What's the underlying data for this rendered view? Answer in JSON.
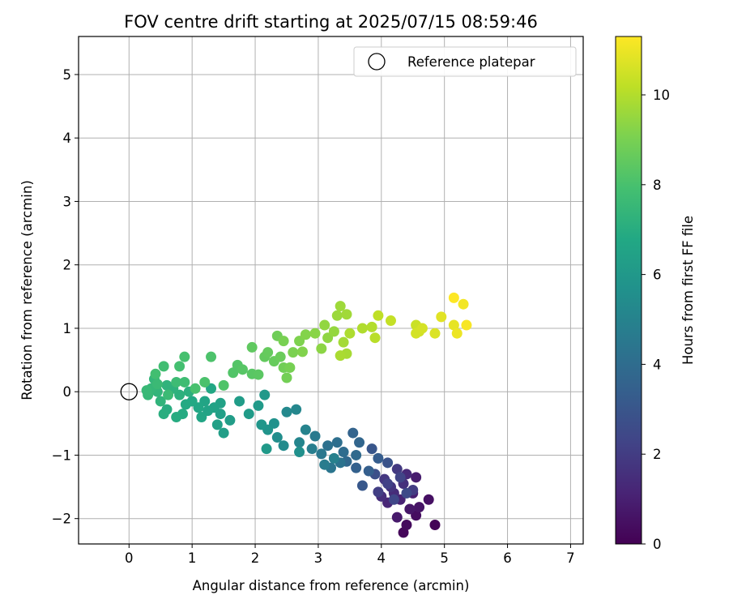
{
  "chart_data": {
    "type": "scatter",
    "title": "FOV centre drift starting at 2025/07/15 08:59:46",
    "xlabel": "Angular distance from reference (arcmin)",
    "ylabel": "Rotation from reference (arcmin)",
    "xlim": [
      -0.8,
      7.2
    ],
    "ylim": [
      -2.4,
      5.6
    ],
    "xticks": [
      "0",
      "1",
      "2",
      "3",
      "4",
      "5",
      "6",
      "7"
    ],
    "yticks": [
      "−2",
      "−1",
      "0",
      "1",
      "2",
      "3",
      "4",
      "5"
    ],
    "grid": true,
    "legend": {
      "position": "top-right",
      "entries": [
        "Reference platepar"
      ]
    },
    "reference_point": {
      "x": 0.0,
      "y": 0.0
    },
    "colorbar": {
      "label": "Hours from first FF file",
      "range": [
        0,
        11.3
      ],
      "ticks": [
        "0",
        "2",
        "4",
        "6",
        "8",
        "10"
      ],
      "colormap": "viridis"
    },
    "points": [
      [
        4.85,
        -2.1,
        0.1
      ],
      [
        4.35,
        -2.22,
        0.2
      ],
      [
        4.4,
        -2.1,
        0.3
      ],
      [
        4.55,
        -1.95,
        0.4
      ],
      [
        4.75,
        -1.7,
        0.5
      ],
      [
        4.6,
        -1.82,
        0.6
      ],
      [
        4.45,
        -1.85,
        0.7
      ],
      [
        4.25,
        -1.98,
        0.8
      ],
      [
        4.55,
        -1.35,
        0.9
      ],
      [
        4.5,
        -1.6,
        1.0
      ],
      [
        4.3,
        -1.7,
        1.1
      ],
      [
        4.1,
        -1.75,
        1.2
      ],
      [
        4.4,
        -1.3,
        1.3
      ],
      [
        4.2,
        -1.6,
        1.4
      ],
      [
        4.0,
        -1.65,
        1.5
      ],
      [
        4.35,
        -1.45,
        1.6
      ],
      [
        4.15,
        -1.5,
        1.7
      ],
      [
        4.05,
        -1.38,
        1.8
      ],
      [
        4.25,
        -1.22,
        1.9
      ],
      [
        4.5,
        -1.55,
        2.0
      ],
      [
        3.95,
        -1.58,
        2.1
      ],
      [
        4.1,
        -1.45,
        2.2
      ],
      [
        4.3,
        -1.35,
        2.3
      ],
      [
        4.2,
        -1.7,
        2.4
      ],
      [
        4.4,
        -1.6,
        2.5
      ],
      [
        3.9,
        -1.3,
        2.7
      ],
      [
        4.1,
        -1.12,
        2.9
      ],
      [
        3.85,
        -0.9,
        3.0
      ],
      [
        3.7,
        -1.48,
        3.1
      ],
      [
        3.95,
        -1.05,
        3.3
      ],
      [
        3.8,
        -1.25,
        3.4
      ],
      [
        3.6,
        -1.2,
        3.5
      ],
      [
        3.55,
        -0.65,
        3.6
      ],
      [
        3.65,
        -0.8,
        3.7
      ],
      [
        3.45,
        -1.1,
        3.8
      ],
      [
        3.6,
        -1.0,
        3.9
      ],
      [
        3.4,
        -0.95,
        4.0
      ],
      [
        3.3,
        -0.8,
        4.1
      ],
      [
        3.15,
        -0.85,
        4.2
      ],
      [
        3.35,
        -1.12,
        4.3
      ],
      [
        3.2,
        -1.2,
        4.4
      ],
      [
        3.05,
        -0.98,
        4.5
      ],
      [
        2.95,
        -0.7,
        4.6
      ],
      [
        3.1,
        -1.15,
        4.7
      ],
      [
        2.9,
        -0.9,
        4.8
      ],
      [
        3.25,
        -1.05,
        4.9
      ],
      [
        2.8,
        -0.6,
        5.0
      ],
      [
        2.7,
        -0.8,
        5.1
      ],
      [
        2.65,
        -0.28,
        5.2
      ],
      [
        2.5,
        -0.32,
        5.3
      ],
      [
        2.45,
        -0.85,
        5.4
      ],
      [
        2.35,
        -0.72,
        5.5
      ],
      [
        2.7,
        -0.95,
        5.6
      ],
      [
        2.3,
        -0.5,
        5.7
      ],
      [
        2.2,
        -0.6,
        5.8
      ],
      [
        2.1,
        -0.52,
        5.9
      ],
      [
        2.15,
        -0.05,
        6.0
      ],
      [
        2.18,
        -0.9,
        6.05
      ],
      [
        2.05,
        -0.22,
        6.1
      ],
      [
        1.9,
        -0.35,
        6.15
      ],
      [
        1.75,
        -0.15,
        6.2
      ],
      [
        1.6,
        -0.45,
        6.25
      ],
      [
        1.5,
        -0.65,
        6.3
      ],
      [
        1.45,
        -0.35,
        6.35
      ],
      [
        1.4,
        -0.52,
        6.4
      ],
      [
        1.45,
        -0.18,
        6.45
      ],
      [
        1.35,
        -0.25,
        6.5
      ],
      [
        1.25,
        -0.3,
        6.55
      ],
      [
        1.2,
        -0.15,
        6.6
      ],
      [
        1.15,
        -0.4,
        6.65
      ],
      [
        1.1,
        -0.25,
        6.7
      ],
      [
        1.3,
        0.05,
        6.75
      ],
      [
        1.0,
        -0.15,
        6.8
      ],
      [
        0.9,
        -0.2,
        6.85
      ],
      [
        0.85,
        -0.35,
        6.9
      ],
      [
        0.75,
        -0.4,
        6.95
      ],
      [
        0.6,
        -0.28,
        7.0
      ],
      [
        0.55,
        -0.35,
        7.05
      ],
      [
        0.95,
        0.0,
        7.1
      ],
      [
        0.8,
        -0.05,
        7.15
      ],
      [
        0.7,
        0.05,
        7.2
      ],
      [
        0.6,
        0.1,
        7.25
      ],
      [
        0.5,
        -0.15,
        7.3
      ],
      [
        0.45,
        0.0,
        7.35
      ],
      [
        0.4,
        0.2,
        7.4
      ],
      [
        0.35,
        0.05,
        7.45
      ],
      [
        0.3,
        -0.05,
        7.5
      ],
      [
        0.28,
        0.02,
        7.55
      ],
      [
        0.45,
        0.12,
        7.6
      ],
      [
        0.62,
        -0.05,
        7.65
      ],
      [
        0.75,
        0.15,
        7.7
      ],
      [
        0.88,
        0.15,
        7.75
      ],
      [
        0.55,
        0.4,
        7.8
      ],
      [
        0.42,
        0.28,
        7.85
      ],
      [
        0.8,
        0.4,
        7.9
      ],
      [
        0.88,
        0.55,
        7.95
      ],
      [
        1.05,
        0.05,
        8.0
      ],
      [
        1.2,
        0.15,
        8.05
      ],
      [
        1.3,
        0.55,
        8.1
      ],
      [
        1.5,
        0.1,
        8.15
      ],
      [
        1.65,
        0.3,
        8.2
      ],
      [
        1.72,
        0.42,
        8.25
      ],
      [
        1.8,
        0.35,
        8.3
      ],
      [
        1.95,
        0.28,
        8.35
      ],
      [
        2.05,
        0.27,
        8.4
      ],
      [
        1.95,
        0.7,
        8.5
      ],
      [
        2.15,
        0.55,
        8.55
      ],
      [
        2.2,
        0.62,
        8.6
      ],
      [
        2.3,
        0.48,
        8.65
      ],
      [
        2.4,
        0.55,
        8.7
      ],
      [
        2.35,
        0.88,
        8.8
      ],
      [
        2.45,
        0.38,
        8.85
      ],
      [
        2.5,
        0.22,
        8.9
      ],
      [
        2.55,
        0.38,
        8.95
      ],
      [
        2.45,
        0.8,
        9.0
      ],
      [
        2.6,
        0.62,
        9.05
      ],
      [
        2.7,
        0.8,
        9.1
      ],
      [
        2.75,
        0.63,
        9.15
      ],
      [
        2.8,
        0.9,
        9.2
      ],
      [
        2.95,
        0.92,
        9.3
      ],
      [
        3.05,
        0.68,
        9.35
      ],
      [
        3.15,
        0.85,
        9.4
      ],
      [
        3.1,
        1.05,
        9.45
      ],
      [
        3.25,
        0.95,
        9.5
      ],
      [
        3.3,
        1.2,
        9.6
      ],
      [
        3.35,
        1.35,
        9.65
      ],
      [
        3.45,
        1.22,
        9.7
      ],
      [
        3.4,
        0.78,
        9.75
      ],
      [
        3.45,
        0.6,
        9.8
      ],
      [
        3.35,
        0.57,
        9.85
      ],
      [
        3.5,
        0.92,
        9.9
      ],
      [
        3.7,
        1.0,
        9.95
      ],
      [
        3.85,
        1.02,
        10.0
      ],
      [
        3.9,
        0.85,
        10.1
      ],
      [
        3.95,
        1.2,
        10.2
      ],
      [
        4.15,
        1.12,
        10.3
      ],
      [
        4.55,
        1.05,
        10.4
      ],
      [
        4.6,
        0.95,
        10.5
      ],
      [
        4.55,
        0.92,
        10.55
      ],
      [
        4.65,
        1.0,
        10.6
      ],
      [
        4.85,
        0.92,
        10.7
      ],
      [
        4.95,
        1.18,
        10.8
      ],
      [
        5.15,
        1.05,
        10.9
      ],
      [
        5.2,
        0.92,
        11.0
      ],
      [
        5.3,
        1.38,
        11.1
      ],
      [
        5.35,
        1.05,
        11.2
      ],
      [
        5.15,
        1.48,
        11.3
      ]
    ]
  }
}
